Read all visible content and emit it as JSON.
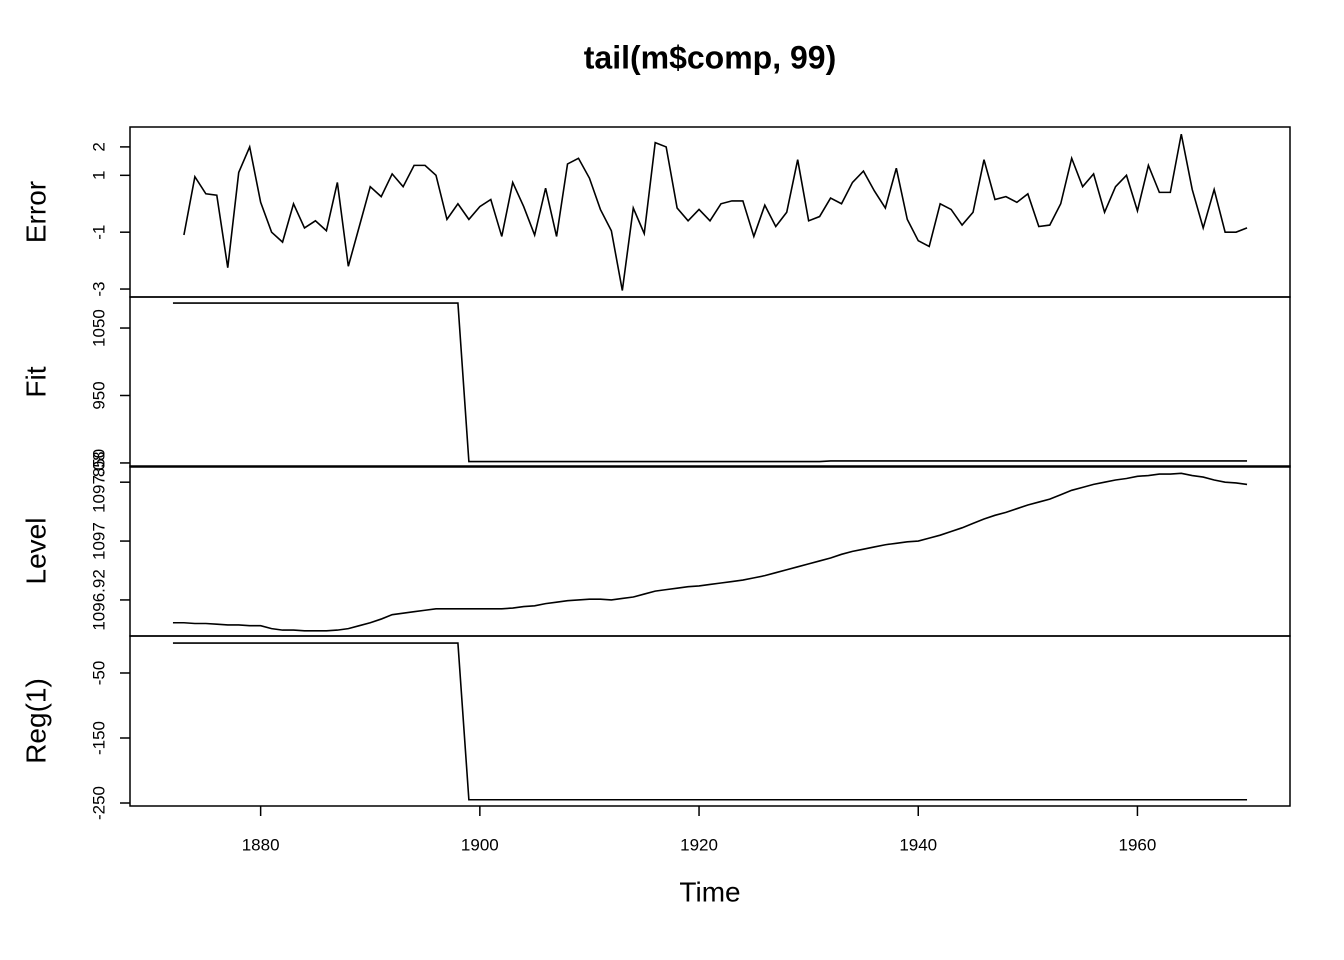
{
  "chart_data": {
    "type": "line",
    "title": "tail(m$comp, 99)",
    "xlabel": "Time",
    "x": [
      1872,
      1873,
      1874,
      1875,
      1876,
      1877,
      1878,
      1879,
      1880,
      1881,
      1882,
      1883,
      1884,
      1885,
      1886,
      1887,
      1888,
      1889,
      1890,
      1891,
      1892,
      1893,
      1894,
      1895,
      1896,
      1897,
      1898,
      1899,
      1900,
      1901,
      1902,
      1903,
      1904,
      1905,
      1906,
      1907,
      1908,
      1909,
      1910,
      1911,
      1912,
      1913,
      1914,
      1915,
      1916,
      1917,
      1918,
      1919,
      1920,
      1921,
      1922,
      1923,
      1924,
      1925,
      1926,
      1927,
      1928,
      1929,
      1930,
      1931,
      1932,
      1933,
      1934,
      1935,
      1936,
      1937,
      1938,
      1939,
      1940,
      1941,
      1942,
      1943,
      1944,
      1945,
      1946,
      1947,
      1948,
      1949,
      1950,
      1951,
      1952,
      1953,
      1954,
      1955,
      1956,
      1957,
      1958,
      1959,
      1960,
      1961,
      1962,
      1963,
      1964,
      1965,
      1966,
      1967,
      1968,
      1969,
      1970
    ],
    "xlim": [
      1868.08,
      1973.92
    ],
    "xticks": [
      1880,
      1900,
      1920,
      1940,
      1960
    ],
    "series": [
      {
        "name": "Error",
        "color": "#000000",
        "ylim": [
          -3.28,
          2.7
        ],
        "yticks": [
          -3,
          -1,
          1,
          2
        ],
        "values": [
          null,
          -1.1,
          0.95,
          0.35,
          0.3,
          -2.25,
          1.1,
          2.0,
          0.05,
          -1.0,
          -1.35,
          0.0,
          -0.85,
          -0.6,
          -0.95,
          0.75,
          -2.2,
          -0.8,
          0.6,
          0.25,
          1.05,
          0.6,
          1.35,
          1.35,
          1.0,
          -0.55,
          0.0,
          -0.55,
          -0.1,
          0.15,
          -1.15,
          0.75,
          -0.1,
          -1.1,
          0.55,
          -1.15,
          1.4,
          1.6,
          0.9,
          -0.2,
          -0.95,
          -3.05,
          -0.15,
          -1.05,
          2.15,
          2.0,
          -0.15,
          -0.6,
          -0.2,
          -0.6,
          0.0,
          0.1,
          0.1,
          -1.15,
          -0.05,
          -0.8,
          -0.3,
          1.55,
          -0.6,
          -0.45,
          0.2,
          0.0,
          0.75,
          1.15,
          0.45,
          -0.15,
          1.25,
          -0.55,
          -1.3,
          -1.5,
          0.0,
          -0.2,
          -0.75,
          -0.3,
          1.55,
          0.15,
          0.25,
          0.05,
          0.35,
          -0.8,
          -0.75,
          0.0,
          1.6,
          0.6,
          1.05,
          -0.3,
          0.6,
          1.0,
          -0.25,
          1.35,
          0.4,
          0.4,
          2.45,
          0.5,
          -0.85,
          0.5,
          -1.0,
          -1.0,
          -0.85
        ]
      },
      {
        "name": "Fit",
        "color": "#000000",
        "ylim": [
          844,
          1096
        ],
        "yticks": [
          850,
          950,
          1050
        ],
        "values": [
          1087,
          1087,
          1087,
          1087,
          1087,
          1087,
          1087,
          1087,
          1087,
          1087,
          1087,
          1087,
          1087,
          1087,
          1087,
          1087,
          1087,
          1087,
          1087,
          1087,
          1087,
          1087,
          1087,
          1087,
          1087,
          1087,
          1087,
          852,
          852,
          852,
          852,
          852,
          852,
          852,
          852,
          852,
          852,
          852,
          852,
          852,
          852,
          852,
          852,
          852,
          852,
          852,
          852,
          852,
          852,
          852,
          852,
          852,
          852,
          852,
          852,
          852,
          852,
          852,
          852,
          852,
          853,
          853,
          853,
          853,
          853,
          853,
          853,
          853,
          853,
          853,
          853,
          853,
          853,
          853,
          853,
          853,
          853,
          853,
          853,
          853,
          853,
          853,
          853,
          853,
          853,
          853,
          853,
          853,
          853,
          853,
          853,
          853,
          853,
          853,
          853,
          853,
          853,
          853,
          853
        ]
      },
      {
        "name": "Level",
        "color": "#000000",
        "ylim": [
          1096.871,
          1097.102
        ],
        "yticks": [
          1096.92,
          1097,
          1097.08
        ],
        "values": [
          1096.889,
          1096.889,
          1096.888,
          1096.888,
          1096.887,
          1096.886,
          1096.886,
          1096.885,
          1096.885,
          1096.881,
          1096.879,
          1096.879,
          1096.878,
          1096.878,
          1096.878,
          1096.879,
          1096.881,
          1096.885,
          1096.889,
          1096.894,
          1096.9,
          1096.902,
          1096.904,
          1096.906,
          1096.908,
          1096.908,
          1096.908,
          1096.908,
          1096.908,
          1096.908,
          1096.908,
          1096.909,
          1096.911,
          1096.912,
          1096.915,
          1096.917,
          1096.919,
          1096.92,
          1096.921,
          1096.921,
          1096.92,
          1096.922,
          1096.924,
          1096.928,
          1096.932,
          1096.934,
          1096.936,
          1096.938,
          1096.939,
          1096.941,
          1096.943,
          1096.945,
          1096.947,
          1096.95,
          1096.953,
          1096.957,
          1096.961,
          1096.965,
          1096.969,
          1096.973,
          1096.977,
          1096.982,
          1096.986,
          1096.989,
          1096.992,
          1096.995,
          1096.997,
          1096.999,
          1097.0,
          1097.004,
          1097.008,
          1097.013,
          1097.018,
          1097.024,
          1097.03,
          1097.035,
          1097.039,
          1097.044,
          1097.049,
          1097.053,
          1097.057,
          1097.063,
          1097.069,
          1097.073,
          1097.077,
          1097.08,
          1097.083,
          1097.085,
          1097.088,
          1097.089,
          1097.091,
          1097.091,
          1097.092,
          1097.089,
          1097.087,
          1097.083,
          1097.08,
          1097.079,
          1097.077
        ]
      },
      {
        "name": "Reg(1)",
        "color": "#000000",
        "ylim": [
          -254.6,
          6.9
        ],
        "yticks": [
          -250,
          -150,
          -50
        ],
        "values": [
          -4,
          -4,
          -4,
          -4,
          -4,
          -4,
          -4,
          -4,
          -4,
          -4,
          -4,
          -4,
          -4,
          -4,
          -4,
          -4,
          -4,
          -4,
          -4,
          -4,
          -4,
          -4,
          -4,
          -4,
          -4,
          -4,
          -4,
          -245,
          -245,
          -245,
          -245,
          -245,
          -245,
          -245,
          -245,
          -245,
          -245,
          -245,
          -245,
          -245,
          -245,
          -245,
          -245,
          -245,
          -245,
          -245,
          -245,
          -245,
          -245,
          -245,
          -245,
          -245,
          -245,
          -245,
          -245,
          -245,
          -245,
          -245,
          -245,
          -245,
          -245,
          -245,
          -245,
          -245,
          -245,
          -245,
          -245,
          -245,
          -245,
          -245,
          -245,
          -245,
          -245,
          -245,
          -245,
          -245,
          -245,
          -245,
          -245,
          -245,
          -245,
          -245,
          -245,
          -245,
          -245,
          -245,
          -245,
          -245,
          -245,
          -245,
          -245,
          -245,
          -245,
          -245,
          -245,
          -245,
          -245,
          -245,
          -245
        ]
      }
    ]
  }
}
